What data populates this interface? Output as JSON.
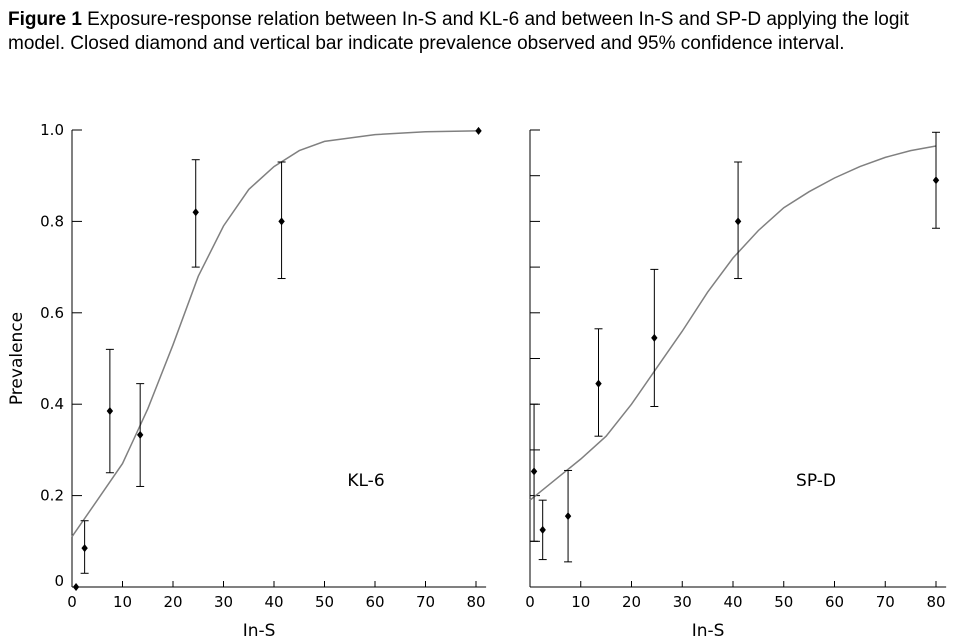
{
  "figure": {
    "caption_label": "Figure 1",
    "caption_text": " Exposure-response relation between In-S and KL-6 and between In-S and SP-D applying the logit model. Closed diamond and vertical bar indicate prevalence observed and 95% confidence interval."
  },
  "chart_data": [
    {
      "type": "scatter",
      "panel_label": "KL-6",
      "xlabel": "In-S",
      "ylabel": "Prevalence",
      "xlim": [
        0,
        82
      ],
      "ylim": [
        0,
        1.0
      ],
      "x_ticks": [
        0,
        10,
        20,
        30,
        40,
        50,
        60,
        70,
        80
      ],
      "y_ticks": [
        0,
        0.2,
        0.4,
        0.6,
        0.8,
        1.0
      ],
      "y_tick_labels": [
        "0",
        "0.2",
        "0.4",
        "0.6",
        "0.8",
        "1.0"
      ],
      "points": [
        {
          "x": 0.8,
          "y": 0.0,
          "lo": 0.0,
          "hi": 0.0
        },
        {
          "x": 2.5,
          "y": 0.085,
          "lo": 0.03,
          "hi": 0.145
        },
        {
          "x": 7.5,
          "y": 0.385,
          "lo": 0.25,
          "hi": 0.52
        },
        {
          "x": 13.5,
          "y": 0.333,
          "lo": 0.22,
          "hi": 0.445
        },
        {
          "x": 24.5,
          "y": 0.82,
          "lo": 0.7,
          "hi": 0.935
        },
        {
          "x": 41.5,
          "y": 0.8,
          "lo": 0.675,
          "hi": 0.93
        },
        {
          "x": 80.5,
          "y": 0.998,
          "lo": 0.998,
          "hi": 0.998
        }
      ],
      "fit_curve": {
        "x": [
          0,
          5,
          10,
          15,
          20,
          25,
          30,
          35,
          40,
          45,
          50,
          60,
          70,
          80
        ],
        "y": [
          0.11,
          0.19,
          0.27,
          0.39,
          0.53,
          0.68,
          0.79,
          0.87,
          0.92,
          0.955,
          0.975,
          0.99,
          0.996,
          0.998
        ]
      }
    },
    {
      "type": "scatter",
      "panel_label": "SP-D",
      "xlabel": "In-S",
      "ylabel": "",
      "xlim": [
        0,
        82
      ],
      "ylim": [
        0,
        1.0
      ],
      "x_ticks": [
        0,
        10,
        20,
        30,
        40,
        50,
        60,
        70,
        80
      ],
      "y_ticks": [
        0,
        0.1,
        0.2,
        0.3,
        0.4,
        0.5,
        0.6,
        0.7,
        0.8,
        0.9,
        1.0
      ],
      "points": [
        {
          "x": 0.8,
          "y": 0.253,
          "lo": 0.1,
          "hi": 0.4
        },
        {
          "x": 2.5,
          "y": 0.125,
          "lo": 0.06,
          "hi": 0.19
        },
        {
          "x": 7.5,
          "y": 0.155,
          "lo": 0.055,
          "hi": 0.255
        },
        {
          "x": 13.5,
          "y": 0.445,
          "lo": 0.33,
          "hi": 0.565
        },
        {
          "x": 24.5,
          "y": 0.545,
          "lo": 0.395,
          "hi": 0.695
        },
        {
          "x": 41.0,
          "y": 0.8,
          "lo": 0.675,
          "hi": 0.93
        },
        {
          "x": 80.0,
          "y": 0.89,
          "lo": 0.785,
          "hi": 0.995
        }
      ],
      "fit_curve": {
        "x": [
          0,
          5,
          10,
          15,
          20,
          25,
          30,
          35,
          40,
          45,
          50,
          55,
          60,
          65,
          70,
          75,
          80
        ],
        "y": [
          0.19,
          0.235,
          0.28,
          0.33,
          0.4,
          0.48,
          0.56,
          0.645,
          0.72,
          0.78,
          0.83,
          0.865,
          0.895,
          0.92,
          0.94,
          0.955,
          0.965
        ]
      }
    }
  ]
}
